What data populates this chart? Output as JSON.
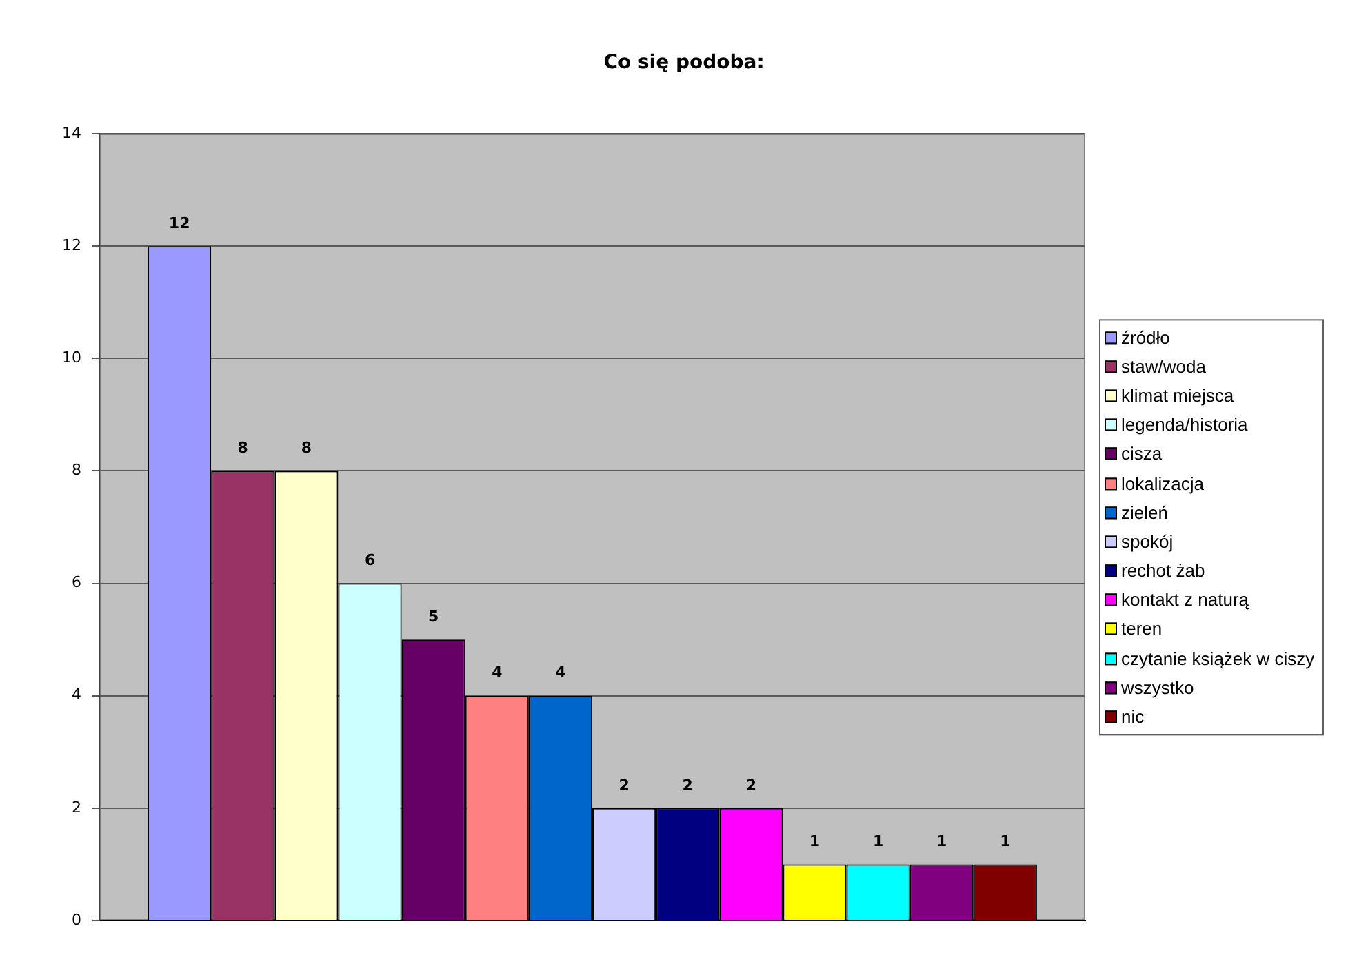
{
  "chart_data": {
    "type": "bar",
    "title": "Co się podoba:",
    "categories": [
      null
    ],
    "series": [
      {
        "name": "źródło",
        "color": "#9999ff",
        "values": [
          12
        ]
      },
      {
        "name": "staw/woda",
        "color": "#993366",
        "values": [
          8
        ]
      },
      {
        "name": "klimat miejsca",
        "color": "#ffffcc",
        "values": [
          8
        ]
      },
      {
        "name": "legenda/historia",
        "color": "#ccffff",
        "values": [
          6
        ]
      },
      {
        "name": "cisza",
        "color": "#660066",
        "values": [
          5
        ]
      },
      {
        "name": "lokalizacja",
        "color": "#ff8080",
        "values": [
          4
        ]
      },
      {
        "name": "zieleń",
        "color": "#0066cc",
        "values": [
          4
        ]
      },
      {
        "name": "spokój",
        "color": "#ccccff",
        "values": [
          2
        ]
      },
      {
        "name": "rechot żab",
        "color": "#000080",
        "values": [
          2
        ]
      },
      {
        "name": "kontakt z naturą",
        "color": "#ff00ff",
        "values": [
          2
        ]
      },
      {
        "name": "teren",
        "color": "#ffff00",
        "values": [
          1
        ]
      },
      {
        "name": "czytanie książek w ciszy",
        "color": "#00ffff",
        "values": [
          1
        ]
      },
      {
        "name": "wszystko",
        "color": "#800080",
        "values": [
          1
        ]
      },
      {
        "name": "nic",
        "color": "#800000",
        "values": [
          1
        ]
      }
    ],
    "ylim": [
      0,
      14
    ],
    "yticks": [
      0,
      2,
      4,
      6,
      8,
      10,
      12,
      14
    ],
    "grid": "y",
    "legend": "right",
    "tick_labels": "y",
    "data_labels": true
  }
}
